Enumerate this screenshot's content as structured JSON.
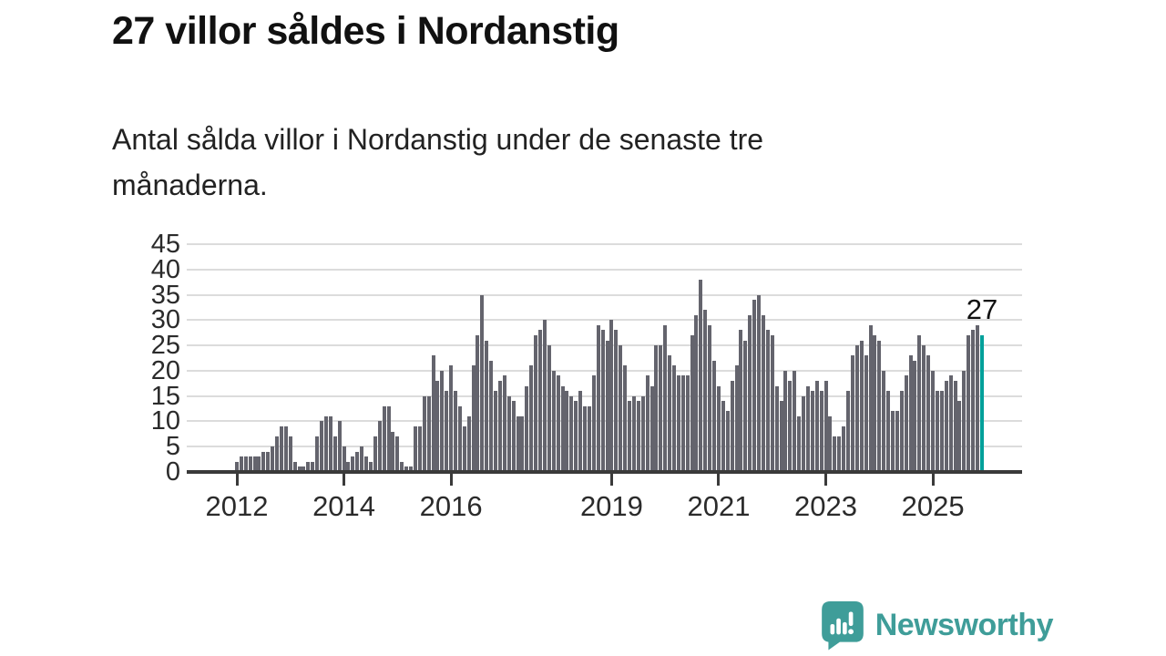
{
  "title": "27 villor såldes i Nordanstig",
  "subtitle": {
    "line1": "Antal sålda villor i Nordanstig under de senaste tre",
    "line2": "månaderna."
  },
  "annotation": {
    "label": "27"
  },
  "logo": {
    "text": "Newsworthy"
  },
  "colors": {
    "bar": "#64646d",
    "highlight": "#00a09a",
    "grid": "#dcdcdc",
    "axis": "#3a3a3a",
    "text": "#2b2b2b",
    "title_text": "#111111",
    "logo": "#3f9d99"
  },
  "chart_data": {
    "type": "bar",
    "title": "27 villor såldes i Nordanstig",
    "subtitle": "Antal sålda villor i Nordanstig under de senaste tre månaderna.",
    "description": "Rolling three-month count of houses (villor) sold in Nordanstig, monthly bars from 2012 to late 2025; last bar highlighted.",
    "x_start": "2012-01",
    "frequency": "monthly",
    "ylim": [
      0,
      45
    ],
    "yticks": [
      0,
      5,
      10,
      15,
      20,
      25,
      30,
      35,
      40,
      45
    ],
    "grid": true,
    "legend": false,
    "xticks": [
      {
        "label": "2012",
        "index": 0
      },
      {
        "label": "2014",
        "index": 24
      },
      {
        "label": "2016",
        "index": 48
      },
      {
        "label": "2019",
        "index": 84
      },
      {
        "label": "2021",
        "index": 108
      },
      {
        "label": "2023",
        "index": 132
      },
      {
        "label": "2025",
        "index": 156
      }
    ],
    "values": [
      2,
      3,
      3,
      3,
      3,
      3,
      4,
      4,
      5,
      7,
      9,
      9,
      7,
      2,
      1,
      1,
      2,
      2,
      7,
      10,
      11,
      11,
      7,
      10,
      5,
      2,
      3,
      4,
      5,
      3,
      2,
      7,
      10,
      13,
      13,
      8,
      7,
      2,
      1,
      1,
      9,
      9,
      15,
      15,
      23,
      18,
      20,
      16,
      21,
      16,
      13,
      9,
      11,
      21,
      27,
      35,
      26,
      22,
      16,
      18,
      19,
      15,
      14,
      11,
      11,
      17,
      21,
      27,
      28,
      30,
      25,
      20,
      19,
      17,
      16,
      15,
      14,
      16,
      13,
      13,
      19,
      29,
      28,
      26,
      30,
      28,
      25,
      21,
      14,
      15,
      14,
      15,
      19,
      17,
      25,
      25,
      29,
      23,
      21,
      19,
      19,
      19,
      27,
      31,
      38,
      32,
      29,
      22,
      17,
      14,
      12,
      18,
      21,
      28,
      26,
      31,
      34,
      35,
      31,
      28,
      27,
      17,
      14,
      20,
      18,
      20,
      11,
      15,
      17,
      16,
      18,
      16,
      18,
      11,
      7,
      7,
      9,
      16,
      23,
      25,
      26,
      23,
      29,
      27,
      26,
      20,
      16,
      12,
      12,
      16,
      19,
      23,
      22,
      27,
      25,
      23,
      20,
      16,
      16,
      18,
      19,
      18,
      14,
      20,
      27,
      28,
      29,
      27
    ],
    "highlight_last_bar": true,
    "last_value": 27
  }
}
